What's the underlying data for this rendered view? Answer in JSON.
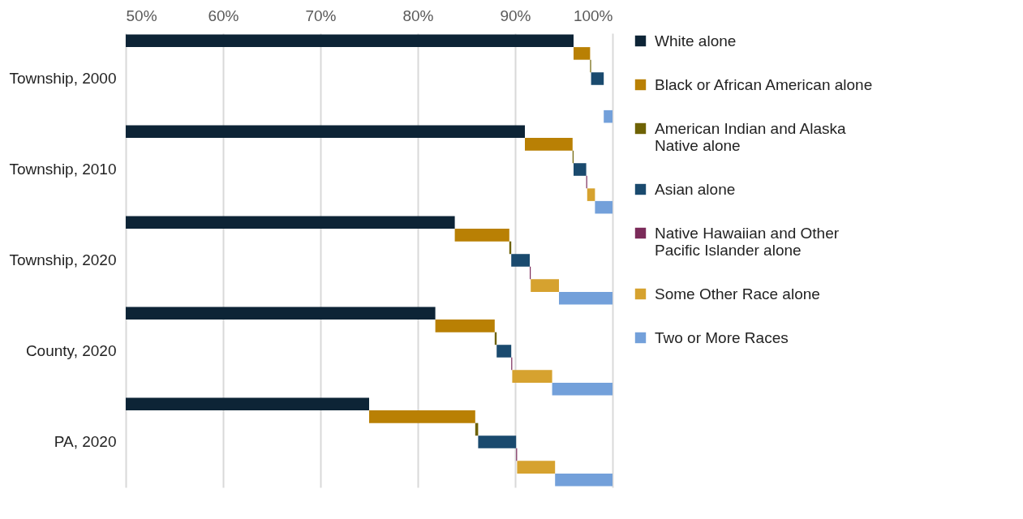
{
  "chart_data": {
    "type": "bar",
    "orientation": "horizontal",
    "categories": [
      "Township, 2000",
      "Township, 2010",
      "Township, 2020",
      "County, 2020",
      "PA, 2020"
    ],
    "series": [
      {
        "name": "White alone",
        "color": "#0d2436",
        "base": [
          50,
          50,
          50,
          50,
          50
        ],
        "values": [
          46.0,
          41.0,
          33.8,
          31.8,
          25.0
        ]
      },
      {
        "name": "Black or African American alone",
        "color": "#b98004",
        "base": [
          96.0,
          91.0,
          83.8,
          81.8,
          75.0
        ],
        "values": [
          1.7,
          4.9,
          5.6,
          6.1,
          10.9
        ]
      },
      {
        "name": "American Indian and Alaska Native alone",
        "color": "#6e6204",
        "base": [
          97.7,
          95.9,
          89.4,
          87.9,
          85.9
        ],
        "values": [
          0.1,
          0.1,
          0.2,
          0.2,
          0.3
        ]
      },
      {
        "name": "Asian alone",
        "color": "#1a4a6e",
        "base": [
          97.8,
          96.0,
          89.6,
          88.1,
          86.2
        ],
        "values": [
          1.3,
          1.3,
          1.9,
          1.5,
          3.9
        ]
      },
      {
        "name": "Native Hawaiian and Other Pacific Islander alone",
        "color": "#7b2b5a",
        "base": [
          null,
          97.3,
          91.5,
          89.6,
          90.1
        ],
        "values": [
          null,
          0.1,
          0.1,
          0.1,
          0.1
        ]
      },
      {
        "name": "Some Other Race alone",
        "color": "#d6a22f",
        "base": [
          null,
          97.4,
          91.6,
          89.7,
          90.2
        ],
        "values": [
          null,
          0.8,
          2.9,
          4.1,
          3.9
        ]
      },
      {
        "name": "Two or More Races",
        "color": "#73a0da",
        "base": [
          99.1,
          98.2,
          94.5,
          93.8,
          94.1
        ],
        "values": [
          0.9,
          1.8,
          5.5,
          6.2,
          5.9
        ]
      }
    ],
    "xlim": [
      50,
      100
    ],
    "xticks": [
      {
        "value": 50,
        "label": "50%"
      },
      {
        "value": 60,
        "label": "60%"
      },
      {
        "value": 70,
        "label": "70%"
      },
      {
        "value": 80,
        "label": "80%"
      },
      {
        "value": 90,
        "label": "90%"
      },
      {
        "value": 100,
        "label": "100%"
      }
    ],
    "grid": "x",
    "legend": "right"
  }
}
